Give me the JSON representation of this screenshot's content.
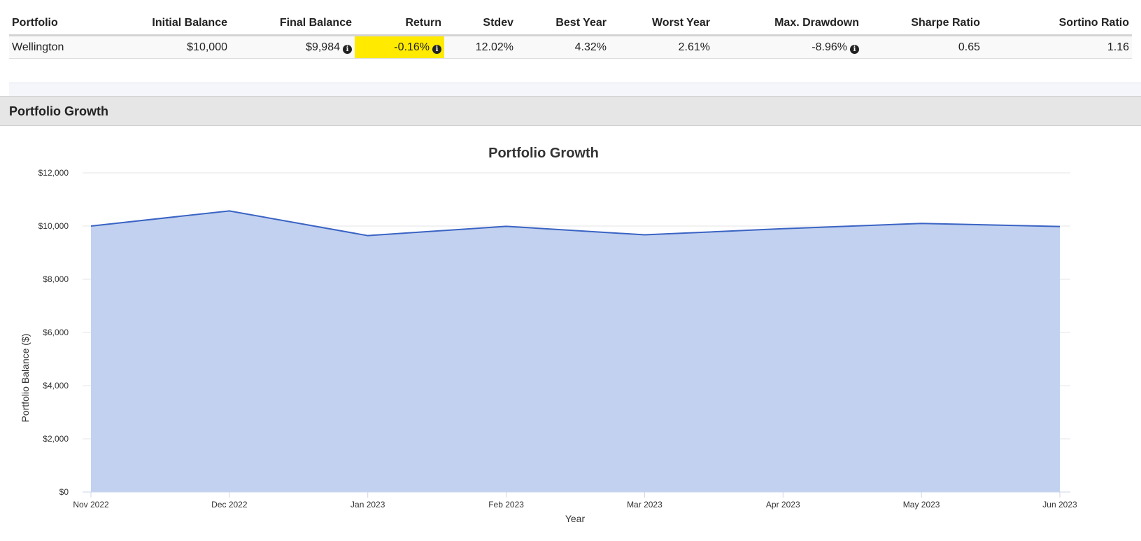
{
  "table": {
    "headers": [
      "Portfolio",
      "Initial Balance",
      "Final Balance",
      "Return",
      "Stdev",
      "Best Year",
      "Worst Year",
      "Max. Drawdown",
      "Sharpe Ratio",
      "Sortino Ratio"
    ],
    "row": {
      "portfolio": "Wellington",
      "initial_balance": "$10,000",
      "final_balance": "$9,984",
      "return": "-0.16%",
      "stdev": "12.02%",
      "best_year": "4.32%",
      "worst_year": "2.61%",
      "max_drawdown": "-8.96%",
      "sharpe_ratio": "0.65",
      "sortino_ratio": "1.16"
    },
    "highlight_color": "#ffea00",
    "info_icon_glyph": "i"
  },
  "section": {
    "title": "Portfolio Growth"
  },
  "chart_data": {
    "type": "area",
    "title": "Portfolio Growth",
    "xlabel": "Year",
    "ylabel": "Portfolio Balance ($)",
    "ylim": [
      0,
      12000
    ],
    "yticks": [
      0,
      2000,
      4000,
      6000,
      8000,
      10000,
      12000
    ],
    "ytick_labels": [
      "$0",
      "$2,000",
      "$4,000",
      "$6,000",
      "$8,000",
      "$10,000",
      "$12,000"
    ],
    "categories": [
      "Nov 2022",
      "Dec 2022",
      "Jan 2023",
      "Feb 2023",
      "Mar 2023",
      "Apr 2023",
      "May 2023",
      "Jun 2023"
    ],
    "series": [
      {
        "values": [
          10000,
          10570,
          9640,
          9990,
          9670,
          9900,
          10100,
          9984
        ],
        "color": "#3a63c4",
        "fill": "#c1d1ef"
      }
    ],
    "grid": true,
    "legend": "none"
  }
}
